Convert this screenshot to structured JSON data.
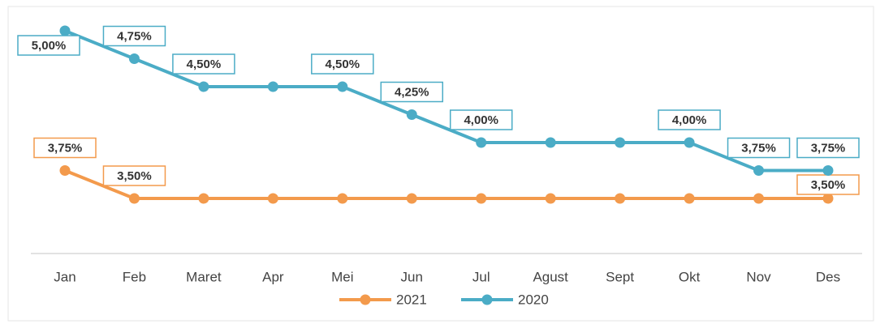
{
  "chart_data": {
    "type": "line",
    "categories": [
      "Jan",
      "Feb",
      "Maret",
      "Apr",
      "Mei",
      "Jun",
      "Jul",
      "Agust",
      "Sept",
      "Okt",
      "Nov",
      "Des"
    ],
    "series": [
      {
        "name": "2021",
        "color": "#f39a4c",
        "values": [
          3.75,
          3.5,
          3.5,
          3.5,
          3.5,
          3.5,
          3.5,
          3.5,
          3.5,
          3.5,
          3.5,
          3.5
        ],
        "value_labels": [
          "3,75%",
          "3,50%",
          null,
          null,
          null,
          null,
          null,
          null,
          null,
          null,
          null,
          "3,50%"
        ]
      },
      {
        "name": "2020",
        "color": "#4bacc6",
        "values": [
          5.0,
          4.75,
          4.5,
          4.5,
          4.5,
          4.25,
          4.0,
          4.0,
          4.0,
          4.0,
          3.75,
          3.75
        ],
        "value_labels": [
          "5,00%",
          "4,75%",
          "4,50%",
          null,
          "4,50%",
          "4,25%",
          "4,00%",
          null,
          null,
          "4,00%",
          "3,75%",
          "3,75%"
        ]
      }
    ],
    "legend": "bottom"
  }
}
